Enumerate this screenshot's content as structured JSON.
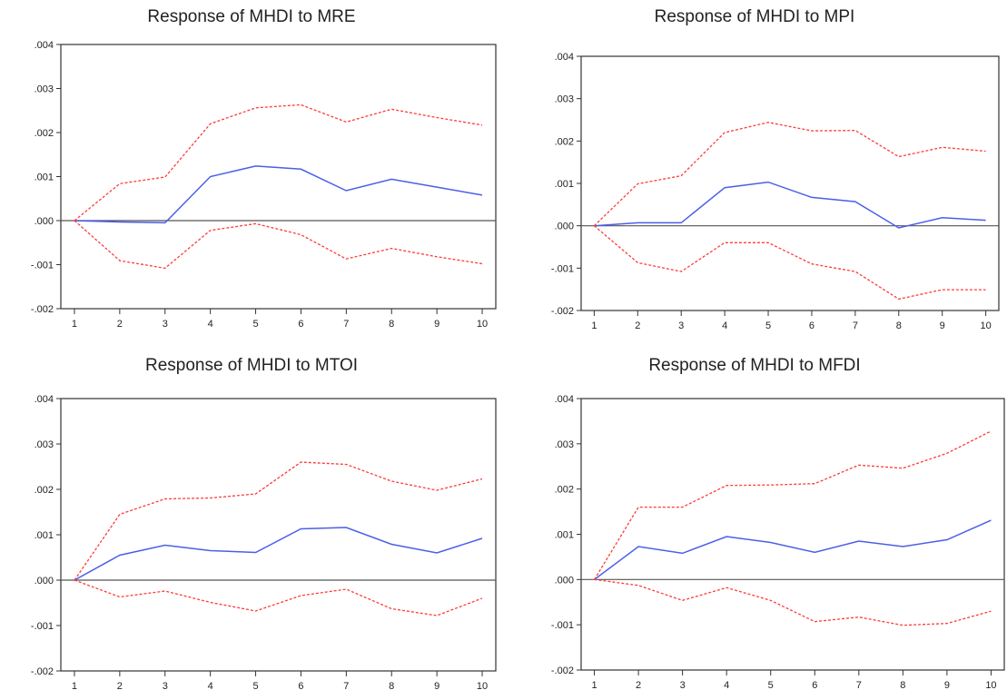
{
  "chart_data": [
    {
      "type": "line",
      "title": "Response of MHDI to MRE",
      "x": [
        1,
        2,
        3,
        4,
        5,
        6,
        7,
        8,
        9,
        10
      ],
      "ylim": [
        -0.002,
        0.004
      ],
      "yticks": [
        ".004",
        ".003",
        ".002",
        ".001",
        ".000",
        "-.001",
        "-.002"
      ],
      "ytick_values": [
        0.004,
        0.003,
        0.002,
        0.001,
        0.0,
        -0.001,
        -0.002
      ],
      "series": [
        {
          "role": "response",
          "color": "#4a5fe8",
          "style": "solid",
          "values": [
            0.0,
            -3e-05,
            -5e-05,
            0.001,
            0.00124,
            0.00117,
            0.00068,
            0.00094,
            0.00076,
            0.00058
          ]
        },
        {
          "role": "upper",
          "color": "#ff3b3b",
          "style": "dashed",
          "values": [
            0.0,
            0.00084,
            0.00099,
            0.0022,
            0.00256,
            0.00263,
            0.00224,
            0.00253,
            0.00234,
            0.00217
          ]
        },
        {
          "role": "lower",
          "color": "#ff3b3b",
          "style": "dashed",
          "values": [
            0.0,
            -0.00091,
            -0.00108,
            -0.00022,
            -7e-05,
            -0.00032,
            -0.00087,
            -0.00063,
            -0.00082,
            -0.00098
          ]
        }
      ]
    },
    {
      "type": "line",
      "title": "Response of MHDI to MPI",
      "x": [
        1,
        2,
        3,
        4,
        5,
        6,
        7,
        8,
        9,
        10
      ],
      "ylim": [
        -0.002,
        0.004
      ],
      "yticks": [
        ".004",
        ".003",
        ".002",
        ".001",
        ".000",
        "-.001",
        "-.002"
      ],
      "ytick_values": [
        0.004,
        0.003,
        0.002,
        0.001,
        0.0,
        -0.001,
        -0.002
      ],
      "series": [
        {
          "role": "response",
          "color": "#4a5fe8",
          "style": "solid",
          "values": [
            0.0,
            7e-05,
            7e-05,
            0.0009,
            0.00103,
            0.00067,
            0.00057,
            -5e-05,
            0.00019,
            0.00013
          ]
        },
        {
          "role": "upper",
          "color": "#ff3b3b",
          "style": "dashed",
          "values": [
            0.0,
            0.00099,
            0.00118,
            0.0022,
            0.00244,
            0.00224,
            0.00225,
            0.00163,
            0.00185,
            0.00176
          ]
        },
        {
          "role": "lower",
          "color": "#ff3b3b",
          "style": "dashed",
          "values": [
            0.0,
            -0.00087,
            -0.00108,
            -0.0004,
            -0.0004,
            -0.0009,
            -0.00108,
            -0.00173,
            -0.00151,
            -0.00151
          ]
        }
      ]
    },
    {
      "type": "line",
      "title": "Response of MHDI to MTOI",
      "x": [
        1,
        2,
        3,
        4,
        5,
        6,
        7,
        8,
        9,
        10
      ],
      "ylim": [
        -0.002,
        0.004
      ],
      "yticks": [
        ".004",
        ".003",
        ".002",
        ".001",
        ".000",
        "-.001",
        "-.002"
      ],
      "ytick_values": [
        0.004,
        0.003,
        0.002,
        0.001,
        0.0,
        -0.001,
        -0.002
      ],
      "series": [
        {
          "role": "response",
          "color": "#4a5fe8",
          "style": "solid",
          "values": [
            0.0,
            0.00055,
            0.00077,
            0.00065,
            0.00061,
            0.00113,
            0.00116,
            0.00079,
            0.0006,
            0.00092
          ]
        },
        {
          "role": "upper",
          "color": "#ff3b3b",
          "style": "dashed",
          "values": [
            0.0,
            0.00145,
            0.00179,
            0.00181,
            0.0019,
            0.0026,
            0.00255,
            0.00218,
            0.00198,
            0.00223
          ]
        },
        {
          "role": "lower",
          "color": "#ff3b3b",
          "style": "dashed",
          "values": [
            0.0,
            -0.00037,
            -0.00024,
            -0.00049,
            -0.00068,
            -0.00034,
            -0.0002,
            -0.00063,
            -0.00078,
            -0.0004
          ]
        }
      ]
    },
    {
      "type": "line",
      "title": "Response of MHDI to MFDI",
      "x": [
        1,
        2,
        3,
        4,
        5,
        6,
        7,
        8,
        9,
        10
      ],
      "ylim": [
        -0.002,
        0.004
      ],
      "yticks": [
        ".004",
        ".003",
        ".002",
        ".001",
        ".000",
        "-.001",
        "-.002"
      ],
      "ytick_values": [
        0.004,
        0.003,
        0.002,
        0.001,
        0.0,
        -0.001,
        -0.002
      ],
      "series": [
        {
          "role": "response",
          "color": "#4a5fe8",
          "style": "solid",
          "values": [
            0.0,
            0.00073,
            0.00058,
            0.00095,
            0.00082,
            0.0006,
            0.00085,
            0.00073,
            0.00088,
            0.00131
          ]
        },
        {
          "role": "upper",
          "color": "#ff3b3b",
          "style": "dashed",
          "values": [
            0.0,
            0.0016,
            0.0016,
            0.00208,
            0.00209,
            0.00212,
            0.00253,
            0.00246,
            0.00279,
            0.00328
          ]
        },
        {
          "role": "lower",
          "color": "#ff3b3b",
          "style": "dashed",
          "values": [
            0.0,
            -0.00013,
            -0.00046,
            -0.00018,
            -0.00046,
            -0.00093,
            -0.00083,
            -0.00101,
            -0.00097,
            -0.0007
          ]
        }
      ]
    }
  ]
}
